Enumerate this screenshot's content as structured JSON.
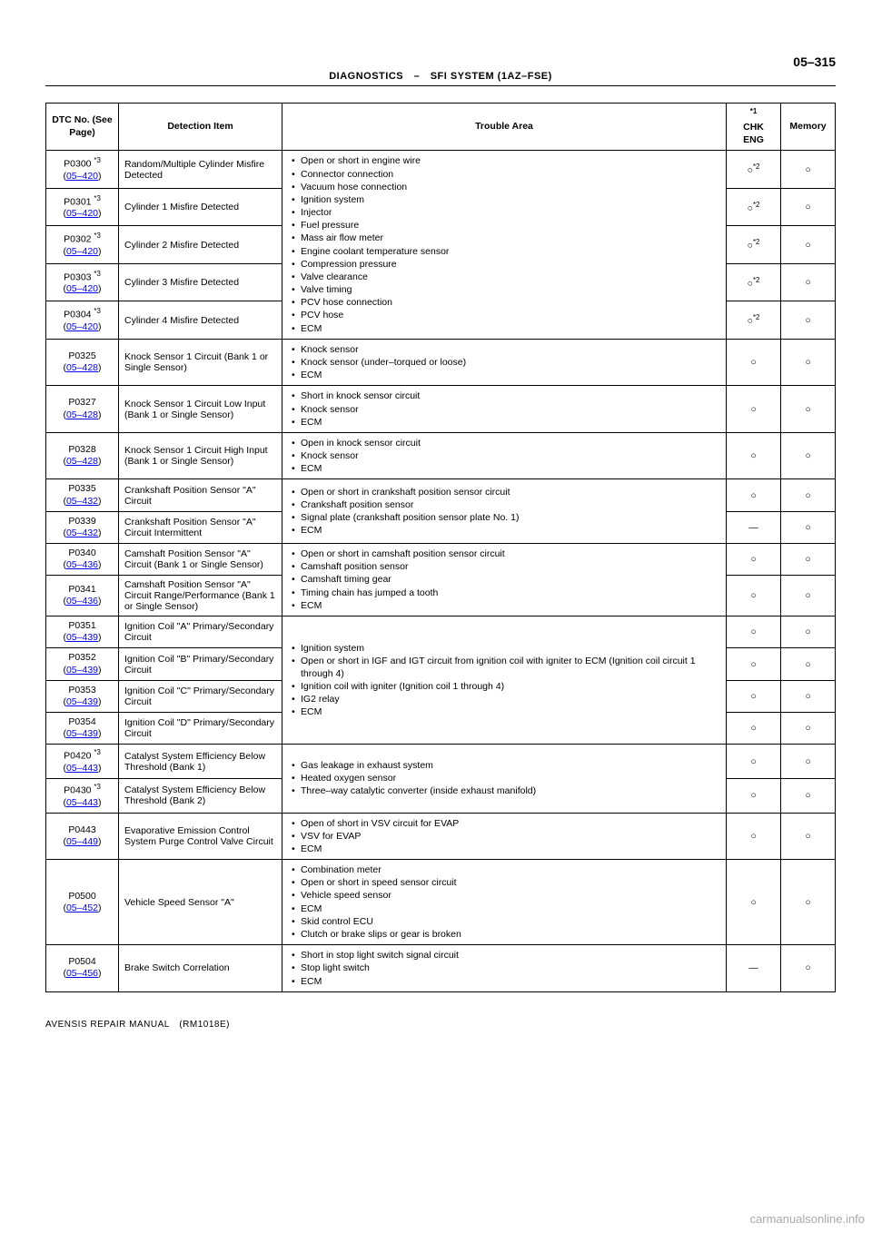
{
  "page_number": "05–315",
  "header_text": "DIAGNOSTICS – SFI SYSTEM (1AZ–FSE)",
  "columns": {
    "dtc": "DTC No.\n(See Page)",
    "detection": "Detection Item",
    "trouble": "Trouble Area",
    "chk_sup": "*1",
    "chk": "CHK ENG",
    "memory": "Memory"
  },
  "misfire_group": {
    "rows": [
      {
        "code": "P0300 *3",
        "page": "05–420",
        "detection": "Random/Multiple Cylinder Misfire Detected"
      },
      {
        "code": "P0301 *3",
        "page": "05–420",
        "detection": "Cylinder 1 Misfire Detected"
      },
      {
        "code": "P0302 *3",
        "page": "05–420",
        "detection": "Cylinder 2 Misfire Detected"
      },
      {
        "code": "P0303 *3",
        "page": "05–420",
        "detection": "Cylinder 3 Misfire Detected"
      },
      {
        "code": "P0304 *3",
        "page": "05–420",
        "detection": "Cylinder 4 Misfire Detected"
      }
    ],
    "trouble": [
      "Open or short in engine wire",
      "Connector connection",
      "Vacuum hose connection",
      "Ignition system",
      "Injector",
      "Fuel pressure",
      "Mass air flow meter",
      "Engine coolant temperature sensor",
      "Compression pressure",
      "Valve clearance",
      "Valve timing",
      "PCV hose connection",
      "PCV hose",
      "ECM"
    ],
    "chk": "○*2",
    "memory": "○"
  },
  "rows_simple": [
    {
      "code": "P0325",
      "page": "05–428",
      "detection": "Knock Sensor 1 Circuit (Bank 1 or Single Sensor)",
      "trouble": [
        "Knock sensor",
        "Knock sensor (under–torqued or loose)",
        "ECM"
      ],
      "chk": "○",
      "memory": "○"
    },
    {
      "code": "P0327",
      "page": "05–428",
      "detection": "Knock Sensor 1 Circuit Low Input (Bank 1 or Single Sensor)",
      "trouble": [
        "Short in knock sensor circuit",
        "Knock sensor",
        "ECM"
      ],
      "chk": "○",
      "memory": "○"
    },
    {
      "code": "P0328",
      "page": "05–428",
      "detection": "Knock Sensor 1 Circuit High Input (Bank 1 or Single Sensor)",
      "trouble": [
        "Open in knock sensor circuit",
        "Knock sensor",
        "ECM"
      ],
      "chk": "○",
      "memory": "○"
    }
  ],
  "crank_group": {
    "rows": [
      {
        "code": "P0335",
        "page": "05–432",
        "detection": "Crankshaft Position Sensor \"A\" Circuit",
        "chk": "○",
        "memory": "○"
      },
      {
        "code": "P0339",
        "page": "05–432",
        "detection": "Crankshaft Position Sensor \"A\" Circuit Intermittent",
        "chk": "—",
        "memory": "○"
      }
    ],
    "trouble": [
      "Open or short in crankshaft position sensor circuit",
      "Crankshaft position sensor",
      "Signal plate (crankshaft position sensor plate No. 1)",
      "ECM"
    ]
  },
  "cam_group": {
    "rows": [
      {
        "code": "P0340",
        "page": "05–436",
        "detection": "Camshaft Position Sensor \"A\" Circuit (Bank 1 or Single Sensor)",
        "chk": "○",
        "memory": "○"
      },
      {
        "code": "P0341",
        "page": "05–436",
        "detection": "Camshaft Position Sensor \"A\" Circuit Range/Performance (Bank 1 or Single Sensor)",
        "chk": "○",
        "memory": "○"
      }
    ],
    "trouble": [
      "Open or short in camshaft position sensor circuit",
      "Camshaft position sensor",
      "Camshaft timing gear",
      "Timing chain has jumped a tooth",
      "ECM"
    ]
  },
  "ign_group": {
    "rows": [
      {
        "code": "P0351",
        "page": "05–439",
        "detection": "Ignition Coil \"A\" Primary/Secondary Circuit",
        "chk": "○",
        "memory": "○"
      },
      {
        "code": "P0352",
        "page": "05–439",
        "detection": "Ignition Coil \"B\" Primary/Secondary Circuit",
        "chk": "○",
        "memory": "○"
      },
      {
        "code": "P0353",
        "page": "05–439",
        "detection": "Ignition Coil \"C\" Primary/Secondary Circuit",
        "chk": "○",
        "memory": "○"
      },
      {
        "code": "P0354",
        "page": "05–439",
        "detection": "Ignition Coil \"D\" Primary/Secondary Circuit",
        "chk": "○",
        "memory": "○"
      }
    ],
    "trouble": [
      "Ignition system",
      "Open or short in IGF and IGT circuit from ignition coil with igniter to ECM (Ignition coil circuit 1 through 4)",
      "Ignition coil with igniter (Ignition coil 1 through 4)",
      "IG2 relay",
      "ECM"
    ]
  },
  "cat_group": {
    "rows": [
      {
        "code": "P0420 *3",
        "page": "05–443",
        "detection": "Catalyst System Efficiency Below Threshold (Bank 1)",
        "chk": "○",
        "memory": "○"
      },
      {
        "code": "P0430 *3",
        "page": "05–443",
        "detection": "Catalyst System Efficiency Below Threshold (Bank 2)",
        "chk": "○",
        "memory": "○"
      }
    ],
    "trouble": [
      "Gas leakage in exhaust system",
      "Heated oxygen sensor",
      "Three–way catalytic converter (inside exhaust manifold)"
    ]
  },
  "tail_rows": [
    {
      "code": "P0443",
      "page": "05–449",
      "detection": "Evaporative Emission Control System Purge Control Valve Circuit",
      "trouble": [
        "Open of short in VSV circuit for EVAP",
        "VSV for EVAP",
        "ECM"
      ],
      "chk": "○",
      "memory": "○"
    },
    {
      "code": "P0500",
      "page": "05–452",
      "detection": "Vehicle Speed Sensor \"A\"",
      "trouble": [
        "Combination meter",
        "Open or short in speed sensor circuit",
        "Vehicle speed sensor",
        "ECM",
        "Skid control ECU",
        "Clutch or brake slips or gear is broken"
      ],
      "chk": "○",
      "memory": "○"
    },
    {
      "code": "P0504",
      "page": "05–456",
      "detection": "Brake Switch Correlation",
      "trouble": [
        "Short in stop light switch signal circuit",
        "Stop light switch",
        "ECM"
      ],
      "chk": "—",
      "memory": "○"
    }
  ],
  "footer": "AVENSIS REPAIR MANUAL (RM1018E)",
  "watermark": "carmanualsonline.info"
}
